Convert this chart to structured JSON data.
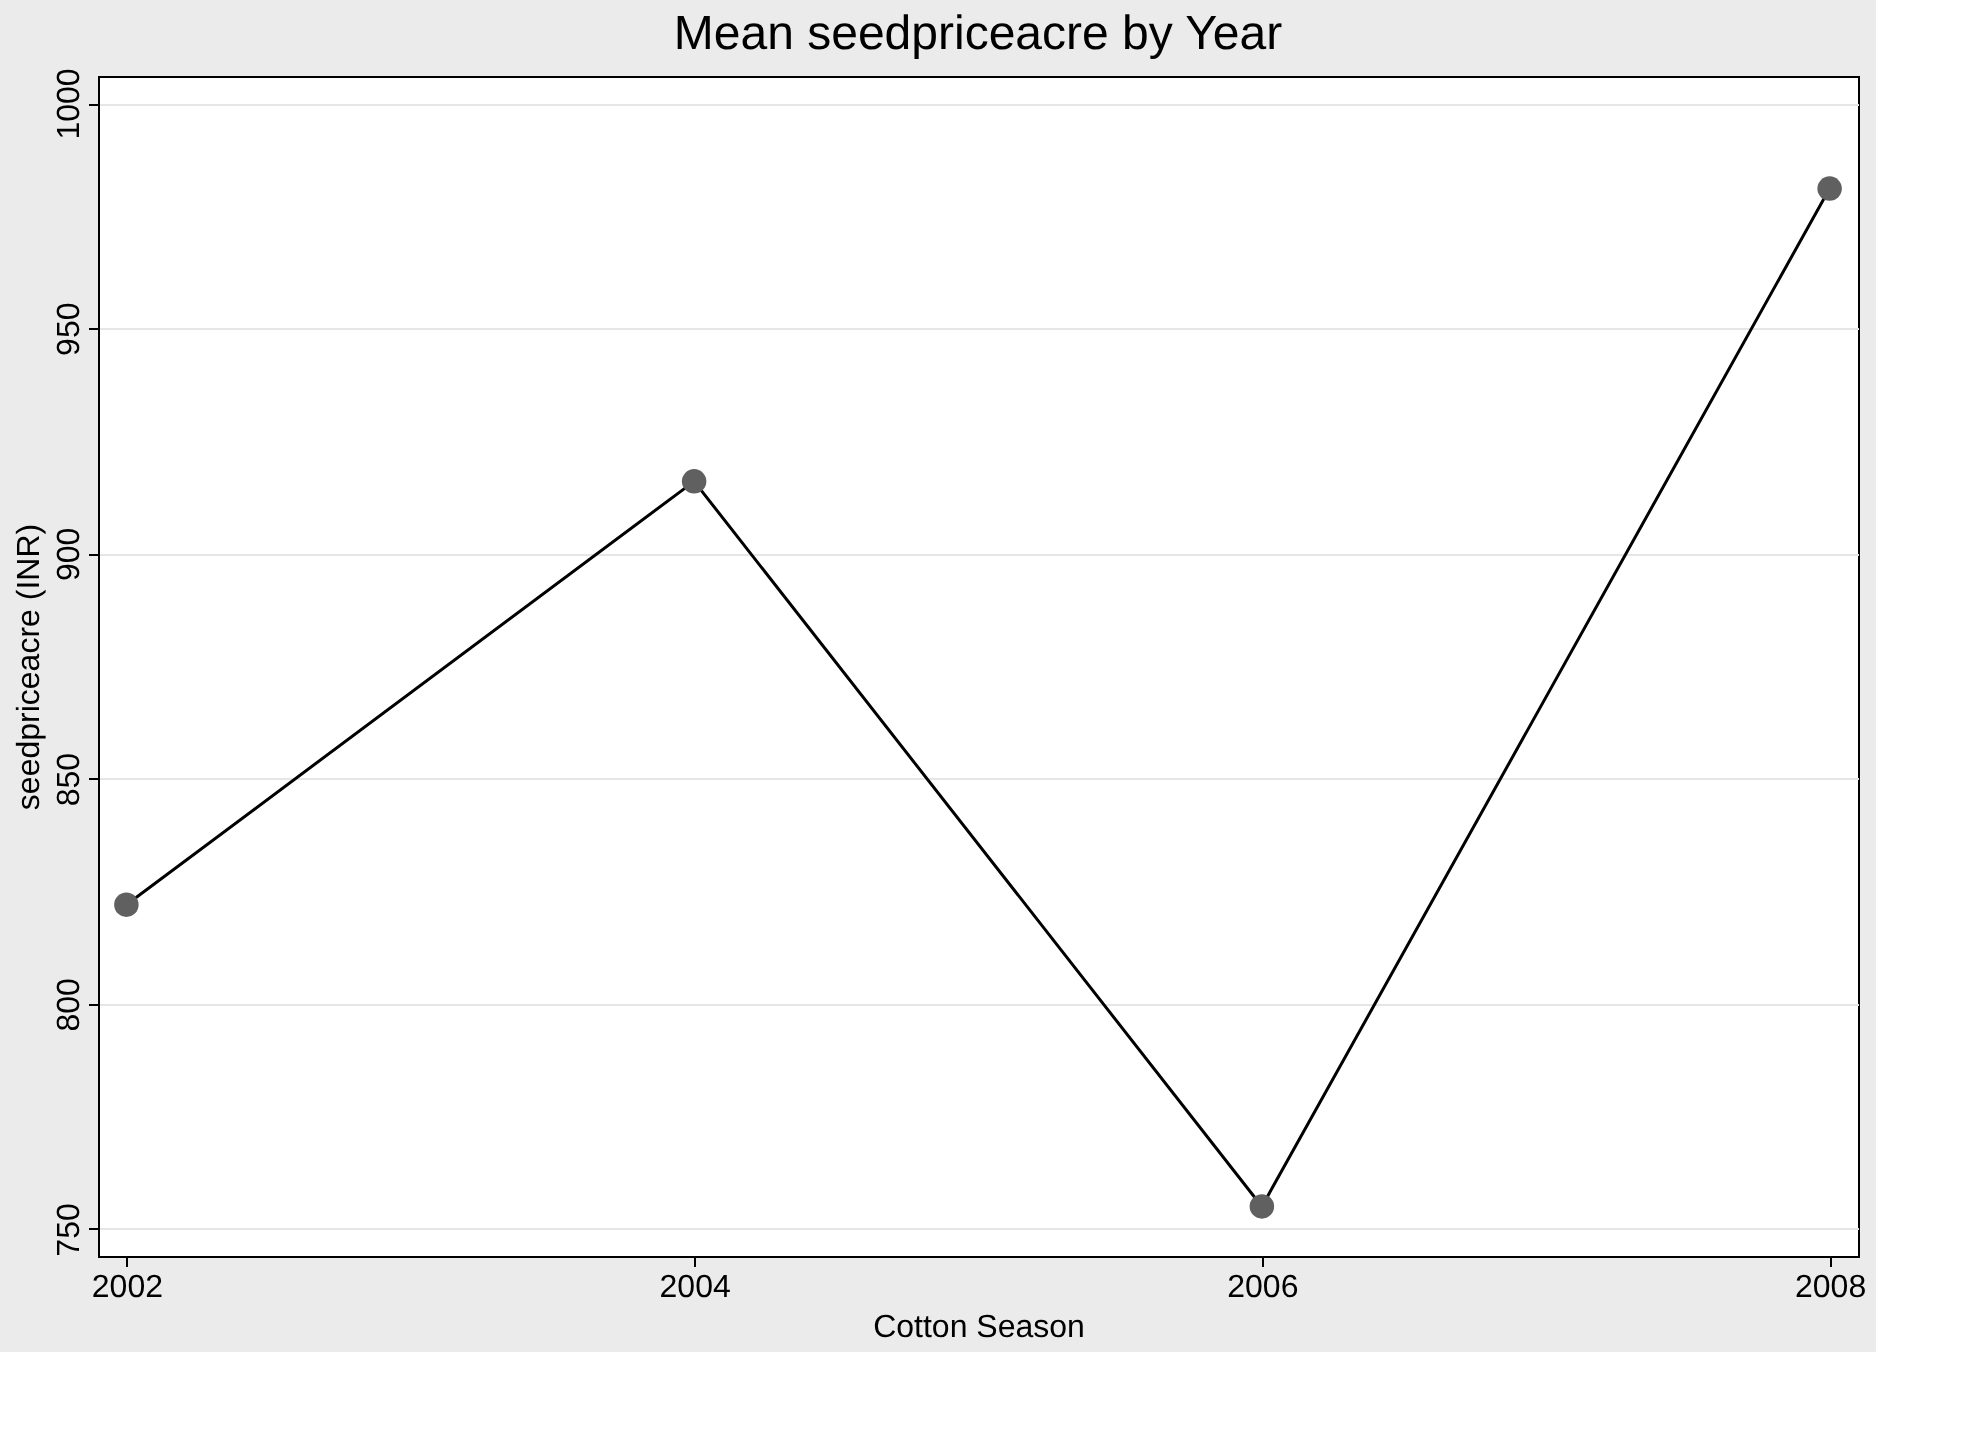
{
  "chart_data": {
    "type": "line",
    "title": "Mean seedpriceacre by Year",
    "xlabel": "Cotton Season",
    "ylabel": "seedpriceacre (INR)",
    "x": [
      2002,
      2004,
      2006,
      2008
    ],
    "series": [
      {
        "color": "#000000",
        "values": [
          822,
          916,
          755,
          981
        ]
      }
    ],
    "xlim": [
      2001.9,
      2008.1
    ],
    "xticks": [
      2002,
      2004,
      2006,
      2008
    ],
    "ylim": [
      744,
      1006
    ],
    "yticks": [
      750,
      800,
      850,
      900,
      950,
      1000
    ],
    "grid": "y",
    "marker": "circle",
    "line_style": "solid"
  }
}
